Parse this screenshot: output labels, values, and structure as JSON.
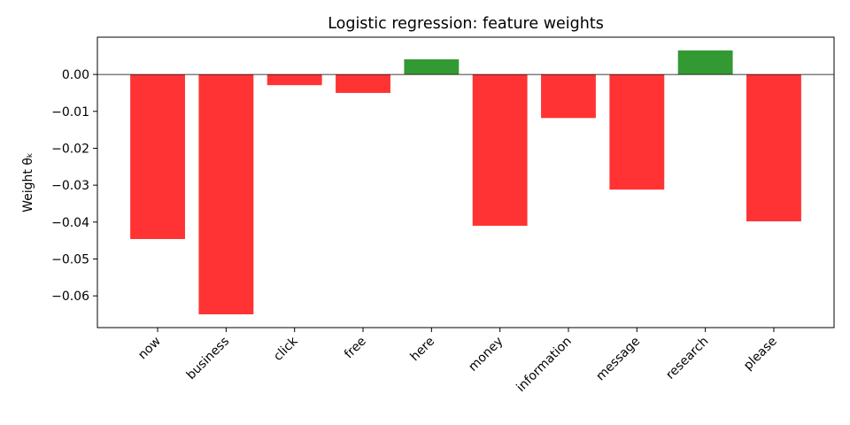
{
  "chart_data": {
    "type": "bar",
    "title": "Logistic regression: feature weights",
    "y_label": "Weight θₖ",
    "categories": [
      "now",
      "business",
      "click",
      "free",
      "here",
      "money",
      "information",
      "message",
      "research",
      "please"
    ],
    "values": [
      -0.0446,
      -0.065,
      -0.0029,
      -0.005,
      0.0041,
      -0.041,
      -0.0118,
      -0.0312,
      0.0065,
      -0.0398
    ],
    "colors": [
      "#ff3333",
      "#ff3333",
      "#ff3333",
      "#ff3333",
      "#339933",
      "#ff3333",
      "#ff3333",
      "#ff3333",
      "#339933",
      "#ff3333"
    ],
    "ylim": [
      -0.0686,
      0.0101
    ],
    "yticks": [
      {
        "value": 0,
        "label": "0.00"
      },
      {
        "value": -0.01,
        "label": "−0.01"
      },
      {
        "value": -0.02,
        "label": "−0.02"
      },
      {
        "value": -0.03,
        "label": "−0.03"
      },
      {
        "value": -0.04,
        "label": "−0.04"
      },
      {
        "value": -0.05,
        "label": "−0.05"
      },
      {
        "value": -0.06,
        "label": "−0.06"
      }
    ],
    "grid": false
  }
}
